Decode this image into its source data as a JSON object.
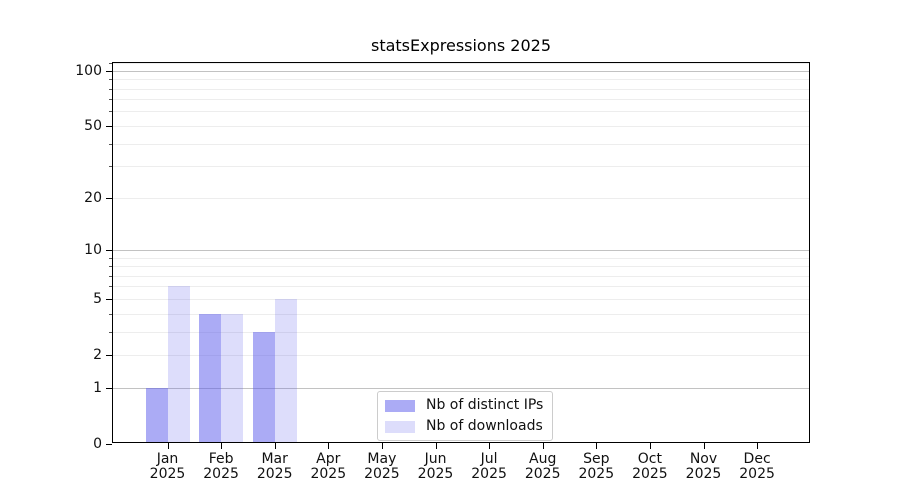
{
  "title": "statsExpressions 2025",
  "chart_data": {
    "type": "bar",
    "title": "statsExpressions 2025",
    "categories": [
      "Jan",
      "Feb",
      "Mar",
      "Apr",
      "May",
      "Jun",
      "Jul",
      "Aug",
      "Sep",
      "Oct",
      "Nov",
      "Dec"
    ],
    "x_sub_label": "2025",
    "series": [
      {
        "name": "Nb of distinct IPs",
        "color": "rgba(87,87,235,0.5)",
        "color_on_white": "#abaaf5",
        "values": [
          1,
          4,
          3,
          0,
          0,
          0,
          0,
          0,
          0,
          0,
          0,
          0
        ]
      },
      {
        "name": "Nb of downloads",
        "color": "rgba(87,87,235,0.2)",
        "color_on_white": "#dcdcf9",
        "values": [
          6,
          4,
          5,
          0,
          0,
          0,
          0,
          0,
          0,
          0,
          0,
          0
        ]
      }
    ],
    "yscale": "log1p",
    "ylabel": "",
    "xlabel": "",
    "y_axis": {
      "tick_values": [
        0,
        1,
        2,
        5,
        10,
        20,
        50,
        100
      ],
      "major_grid": [
        1,
        10,
        100
      ],
      "minor_grid": [
        2,
        3,
        4,
        5,
        6,
        7,
        8,
        9,
        20,
        30,
        40,
        50,
        60,
        70,
        80,
        90,
        110
      ],
      "top_value": 112
    },
    "grid": "on",
    "legend_position": "lower center",
    "spine_color": "#000000",
    "major_grid_color": "#c2c2c2",
    "minor_grid_color": "#ededed"
  }
}
